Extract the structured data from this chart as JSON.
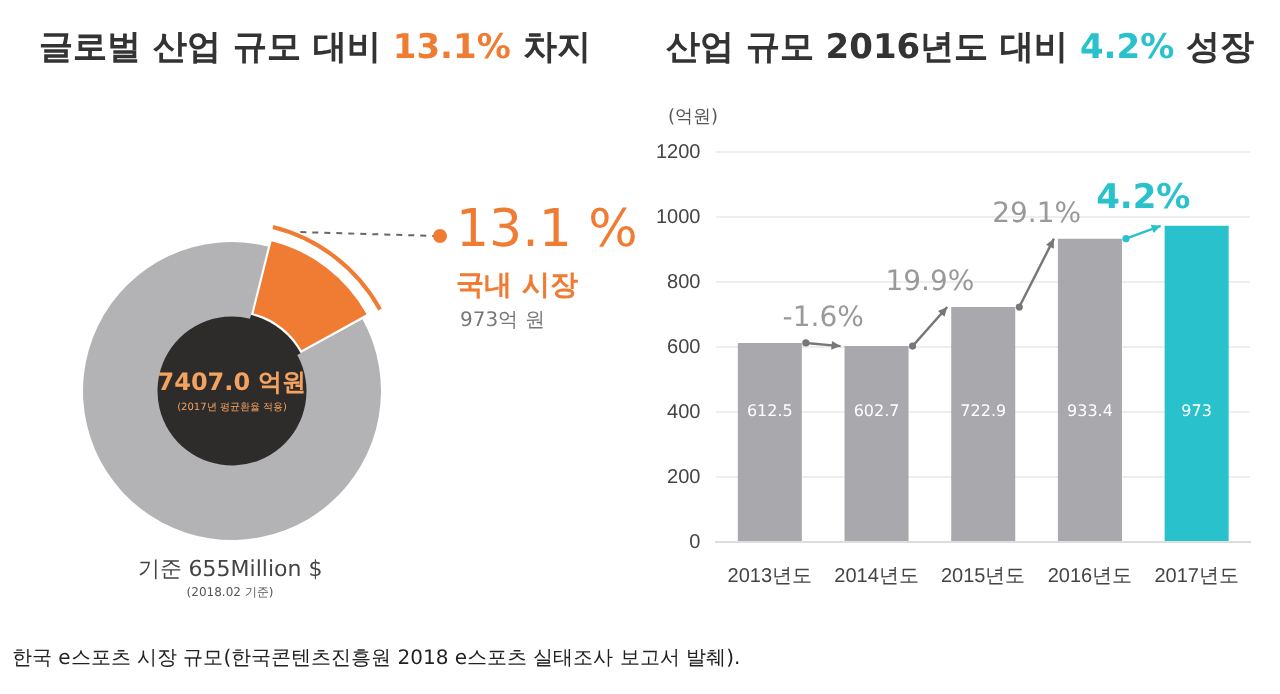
{
  "chart_data": [
    {
      "type": "donut",
      "title": "글로벌 산업 규모 대비 13.1% 차지",
      "categories": [
        "국내 시장",
        null
      ],
      "values": [
        13.1,
        86.9
      ],
      "colors": [
        "#f07c33",
        "#b3b3b5"
      ],
      "value_labels": [
        "13.1 %",
        null
      ],
      "legend": "right",
      "annotations": [
        "973억 원",
        "7407.0 억원",
        "(2017년 평균환율 적용)",
        "기준 655Million $",
        "(2018.02 기준)",
        "한국 e스포츠 시장 규모(한국콘텐츠진흥원 2018 e스포츠 실태조사 보고서 발췌)."
      ]
    },
    {
      "type": "bar",
      "title": "산업 규모 2016년도 대비 4.2% 성장",
      "ylabel": "(억원)",
      "categories": [
        "2013년도",
        "2014년도",
        "2015년도",
        "2016년도",
        "2017년도"
      ],
      "values": [
        612.5,
        602.7,
        722.9,
        933.4,
        973
      ],
      "colors": [
        "#a8a8ad",
        "#a8a8ad",
        "#a8a8ad",
        "#a8a8ad",
        "#29c1cc"
      ],
      "ylim": [
        0,
        1200
      ],
      "yticks": [
        0,
        200,
        400,
        600,
        800,
        1000,
        1200
      ],
      "grid": "y",
      "legend": false,
      "data_labels": true,
      "annotations": [
        {
          "text": "-1.6%",
          "x": "2014년도",
          "y": 602.7
        },
        {
          "text": "19.9%",
          "x": "2015년도",
          "y": 722.9
        },
        {
          "text": "29.1%",
          "x": "2016년도",
          "y": 933.4
        },
        {
          "text": "4.2%",
          "x": "2017년도",
          "y": 973
        }
      ]
    }
  ]
}
